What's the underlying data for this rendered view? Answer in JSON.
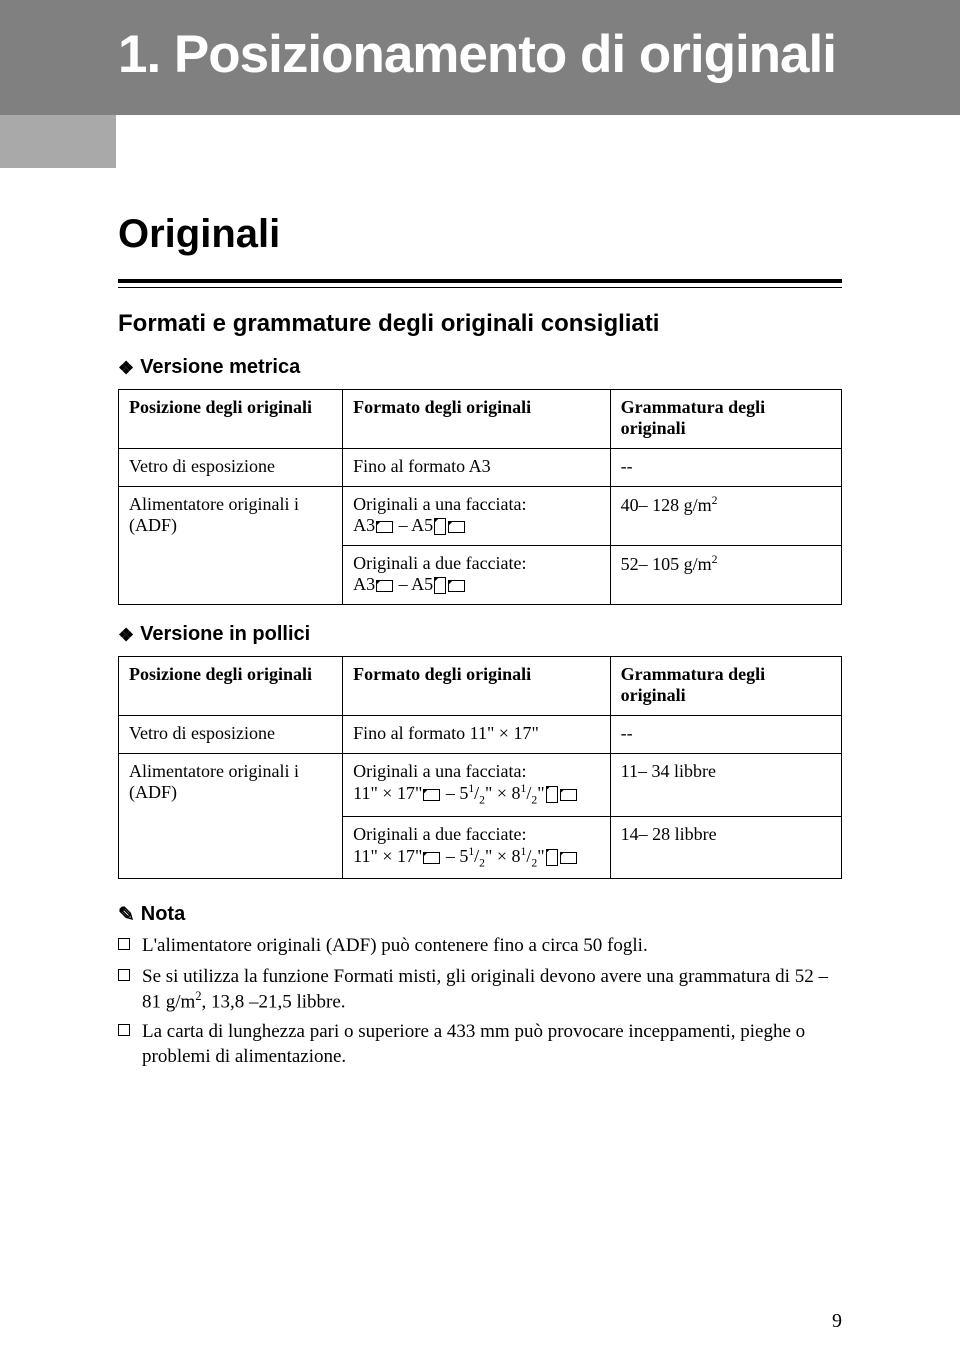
{
  "banner": {
    "title": "1. Posizionamento di originali"
  },
  "subtitle": "Originali",
  "section_heading": "Formati e grammature degli originali consigliati",
  "version_metric_label": "Versione metrica",
  "version_inch_label": "Versione in pollici",
  "table_metric": {
    "head": {
      "c1": "Posizione degli originali",
      "c2": "Formato degli originali",
      "c3": "Grammatura degli originali"
    },
    "rows": {
      "r1": {
        "c1": "Vetro di esposizione",
        "c2": "Fino al formato A3",
        "c3": "--"
      },
      "r2": {
        "c1": "Alimentatore originali i (ADF)",
        "c2a": "Originali a una facciata:",
        "c2b": "A3",
        "c2c": " – A5",
        "c3": "40– 128 g/m",
        "c3_sup": "2"
      },
      "r3": {
        "c2a": "Originali a due facciate:",
        "c2b": "A3",
        "c2c": " – A5",
        "c3": "52– 105 g/m",
        "c3_sup": "2"
      }
    }
  },
  "table_inch": {
    "head": {
      "c1": "Posizione degli originali",
      "c2": "Formato degli originali",
      "c3": "Grammatura degli originali"
    },
    "rows": {
      "r1": {
        "c1": "Vetro di esposizione",
        "c2": "Fino al formato 11\" × 17\"",
        "c3": "--"
      },
      "r2": {
        "c1": "Alimentatore originali i (ADF)",
        "c2a": "Originali a una facciata:",
        "c2b": "11\" × 17\"",
        "c2c": " – 5",
        "c2d": "1",
        "c2e": "/",
        "c2f": "2",
        "c2g": "\" × 8",
        "c2h": "1",
        "c2i": "/",
        "c2j": "2",
        "c2k": "\"",
        "c3": "11– 34 libbre"
      },
      "r3": {
        "c2a": "Originali a due facciate:",
        "c2b": "11\" × 17\"",
        "c2c": " – 5",
        "c2d": "1",
        "c2e": "/",
        "c2f": "2",
        "c2g": "\" × 8",
        "c2h": "1",
        "c2i": "/",
        "c2j": "2",
        "c2k": "\"",
        "c3": "14– 28 libbre"
      }
    }
  },
  "note_heading": "Nota",
  "notes": {
    "n1": "L'alimentatore originali (ADF) può contenere fino a circa 50 fogli.",
    "n2a": "Se si utilizza la funzione Formati misti, gli originali devono avere una grammatura di 52 –81 g/m",
    "n2_sup": "2",
    "n2b": ", 13,8 –21,5 libbre.",
    "n3": "La carta di lunghezza pari o superiore a 433 mm può provocare inceppamenti, pieghe o problemi di alimentazione."
  },
  "page_number": "9",
  "colors": {
    "banner_dark": "#808080",
    "banner_light": "#a9a9a9",
    "text": "#000000",
    "bg": "#ffffff"
  }
}
